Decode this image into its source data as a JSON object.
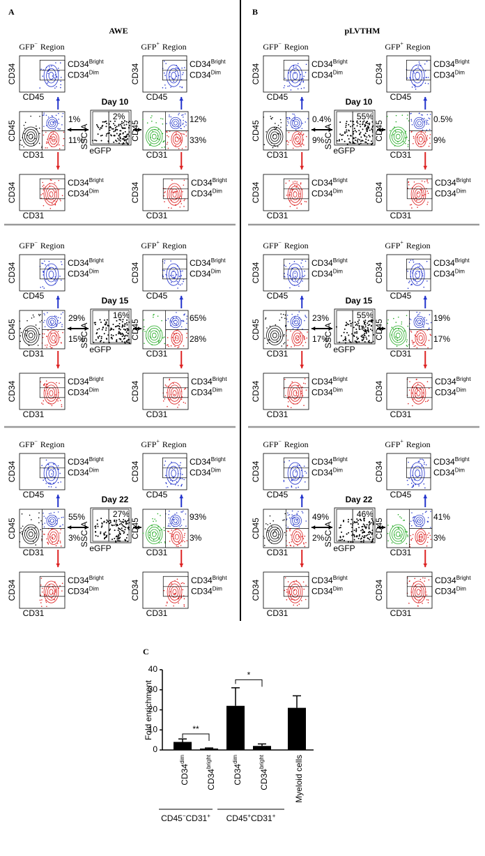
{
  "labels": {
    "cd34": "CD34",
    "cd45": "CD45",
    "cd31": "CD31",
    "ssc": "SSC-A",
    "egfp": "eGFP",
    "bright": "Bright",
    "dim": "Dim",
    "gfp": "GFP",
    "minus": "−",
    "plus": "+",
    "region": "Region"
  },
  "panels": [
    {
      "letter": "A",
      "title": "AWE",
      "days": [
        {
          "day": "Day 10",
          "gfp_neg": {
            "upper": "1%",
            "lower": "11%"
          },
          "sort": "2%",
          "gfp_pos": {
            "upper": "12%",
            "lower": "33%"
          }
        },
        {
          "day": "Day 15",
          "gfp_neg": {
            "upper": "29%",
            "lower": "15%"
          },
          "sort": "16%",
          "gfp_pos": {
            "upper": "65%",
            "lower": "28%"
          }
        },
        {
          "day": "Day 22",
          "gfp_neg": {
            "upper": "55%",
            "lower": "3%"
          },
          "sort": "27%",
          "gfp_pos": {
            "upper": "93%",
            "lower": "3%"
          }
        }
      ]
    },
    {
      "letter": "B",
      "title": "pLVTHM",
      "days": [
        {
          "day": "Day 10",
          "gfp_neg": {
            "upper": "0.4%",
            "lower": "9%"
          },
          "sort": "55%",
          "gfp_pos": {
            "upper": "0.5%",
            "lower": "9%"
          }
        },
        {
          "day": "Day 15",
          "gfp_neg": {
            "upper": "23%",
            "lower": "17%"
          },
          "sort": "55%",
          "gfp_pos": {
            "upper": "19%",
            "lower": "17%"
          }
        },
        {
          "day": "Day 22",
          "gfp_neg": {
            "upper": "49%",
            "lower": "2%"
          },
          "sort": "46%",
          "gfp_pos": {
            "upper": "41%",
            "lower": "3%"
          }
        }
      ]
    }
  ],
  "panel_c": {
    "letter": "C"
  },
  "chart_data": {
    "type": "bar",
    "y_label": "Fold enrichment",
    "categories": [
      {
        "base": "CD34",
        "sup": "dim"
      },
      {
        "base": "CD34",
        "sup": "bright"
      },
      {
        "base": "CD34",
        "sup": "dim"
      },
      {
        "base": "CD34",
        "sup": "bright"
      },
      {
        "base": "Myeloid cells"
      }
    ],
    "groups": [
      [
        "CD45",
        "−",
        "CD31",
        "+"
      ],
      [
        "CD45",
        "+",
        "CD31",
        "+"
      ]
    ],
    "values": [
      4,
      0.7,
      22,
      2,
      21
    ],
    "errors": [
      1.5,
      0.3,
      9,
      1,
      6
    ],
    "color": "#000000",
    "ylim": [
      0,
      40
    ],
    "yticks": [
      0,
      10,
      20,
      30,
      40
    ],
    "annotations": [
      "**",
      "*"
    ]
  }
}
